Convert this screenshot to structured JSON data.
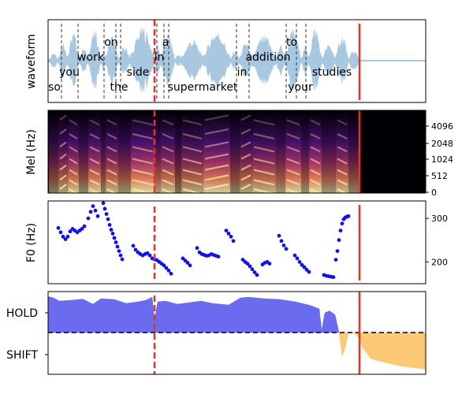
{
  "chart_data": [
    {
      "type": "area",
      "ylabel": "waveform",
      "xlim": [
        0,
        600
      ],
      "words": [
        {
          "text": "so",
          "x": 69,
          "row": 3
        },
        {
          "text": "you",
          "x": 88,
          "row": 2
        },
        {
          "text": "work",
          "x": 115,
          "row": 1
        },
        {
          "text": "on",
          "x": 141,
          "row": 0
        },
        {
          "text": "the",
          "x": 151,
          "row": 3
        },
        {
          "text": "side",
          "x": 175,
          "row": 2
        },
        {
          "text": "in",
          "x": 202,
          "row": 1
        },
        {
          "text": "a",
          "x": 210,
          "row": 0
        },
        {
          "text": "supermarket",
          "x": 257,
          "row": 3
        },
        {
          "text": "in",
          "x": 307,
          "row": 2
        },
        {
          "text": "addition",
          "x": 340,
          "row": 1
        },
        {
          "text": "to",
          "x": 370,
          "row": 0
        },
        {
          "text": "your",
          "x": 381,
          "row": 3
        },
        {
          "text": "studies",
          "x": 421,
          "row": 2
        }
      ],
      "word_boundaries": [
        78,
        99,
        132,
        147,
        153,
        199,
        208,
        214,
        300,
        316,
        363,
        376,
        388
      ],
      "current_time_x": 196,
      "end_time_x": 456,
      "colors": {
        "wave": "#a8c8e0",
        "cursor": "#e83228",
        "end": "#e83228"
      }
    },
    {
      "type": "heatmap",
      "ylabel": "Mel (Hz)",
      "yticks": [
        "4096",
        "2048",
        "1024",
        "512",
        "0"
      ],
      "current_time_x": 196,
      "end_time_x": 456
    },
    {
      "type": "scatter",
      "ylabel": "F0 (Hz)",
      "yticks": [
        300,
        200
      ],
      "ylim": [
        150,
        340
      ],
      "current_time_x": 196,
      "end_time_x": 456,
      "series_color": "#1010e8",
      "segments": [
        {
          "x": [
            74,
            77,
            80,
            83,
            86,
            89,
            92,
            95,
            98,
            101,
            104,
            107
          ],
          "y": [
            278,
            268,
            258,
            252,
            258,
            270,
            276,
            272,
            268,
            272,
            276,
            282
          ]
        },
        {
          "x": [
            112,
            115,
            118,
            121,
            124
          ],
          "y": [
            300,
            315,
            328,
            318,
            305
          ]
        },
        {
          "x": [
            131,
            133,
            135,
            137,
            139,
            141,
            143,
            145,
            147,
            149,
            151,
            153,
            155
          ],
          "y": [
            335,
            322,
            310,
            298,
            285,
            274,
            265,
            255,
            245,
            235,
            225,
            215,
            206
          ]
        },
        {
          "x": [
            169,
            172,
            175,
            178,
            181,
            184,
            187,
            190,
            193
          ],
          "y": [
            237,
            228,
            222,
            218,
            215,
            218,
            220,
            215,
            208
          ]
        },
        {
          "x": [
            196,
            199,
            202,
            205,
            208,
            211,
            214,
            217
          ],
          "y": [
            206,
            204,
            200,
            196,
            192,
            186,
            180,
            173
          ]
        },
        {
          "x": [
            232,
            235,
            238,
            241
          ],
          "y": [
            208,
            203,
            198,
            192
          ]
        },
        {
          "x": [
            250,
            253,
            256,
            259,
            262,
            265,
            268,
            271,
            274,
            277
          ],
          "y": [
            232,
            222,
            218,
            216,
            214,
            215,
            218,
            216,
            214,
            212
          ]
        },
        {
          "x": [
            287,
            290,
            293,
            296
          ],
          "y": [
            272,
            265,
            258,
            248
          ]
        },
        {
          "x": [
            308,
            311,
            314,
            317,
            320,
            323,
            326
          ],
          "y": [
            205,
            200,
            196,
            190,
            183,
            176,
            170
          ]
        },
        {
          "x": [
            333,
            336,
            339,
            342
          ],
          "y": [
            194,
            198,
            200,
            196
          ]
        },
        {
          "x": [
            354,
            357,
            360,
            363
          ],
          "y": [
            260,
            248,
            238,
            230
          ]
        },
        {
          "x": [
            374,
            377,
            380,
            383,
            386,
            389,
            392
          ],
          "y": [
            215,
            208,
            200,
            193,
            188,
            182,
            177
          ]
        },
        {
          "x": [
            411,
            414,
            417,
            420,
            423
          ],
          "y": [
            170,
            168,
            167,
            166,
            165
          ]
        },
        {
          "x": [
            426,
            428,
            430,
            432,
            434,
            436,
            438,
            440,
            442
          ],
          "y": [
            205,
            225,
            250,
            272,
            288,
            298,
            302,
            304,
            305
          ]
        }
      ]
    },
    {
      "type": "area",
      "ylabel": "",
      "yticks": [
        "HOLD",
        "SHIFT"
      ],
      "current_time_x": 196,
      "end_time_x": 456,
      "hold_color": "#6464f0",
      "shift_color": "#fcc870",
      "hold_series": {
        "x": [
          60,
          68,
          75,
          90,
          105,
          118,
          128,
          145,
          160,
          175,
          185,
          193,
          196,
          200,
          210,
          225,
          240,
          255,
          270,
          290,
          305,
          315,
          335,
          355,
          375,
          395,
          405,
          408,
          412,
          418,
          425,
          430
        ],
        "y": [
          0.92,
          0.88,
          0.8,
          0.82,
          0.85,
          0.72,
          0.86,
          0.84,
          0.74,
          0.78,
          0.82,
          0.9,
          0.32,
          0.78,
          0.8,
          0.72,
          0.76,
          0.8,
          0.74,
          0.7,
          0.88,
          0.9,
          0.86,
          0.84,
          0.78,
          0.68,
          0.6,
          0.05,
          0.5,
          0.55,
          0.45,
          0.0
        ]
      },
      "shift_series": {
        "x": [
          430,
          434,
          438,
          442,
          446,
          452,
          456,
          460,
          470,
          490,
          510,
          540
        ],
        "y": [
          0.0,
          -0.55,
          -0.35,
          0.0,
          0.0,
          -0.05,
          -0.15,
          -0.35,
          -0.6,
          -0.7,
          -0.78,
          -0.85
        ]
      }
    }
  ]
}
